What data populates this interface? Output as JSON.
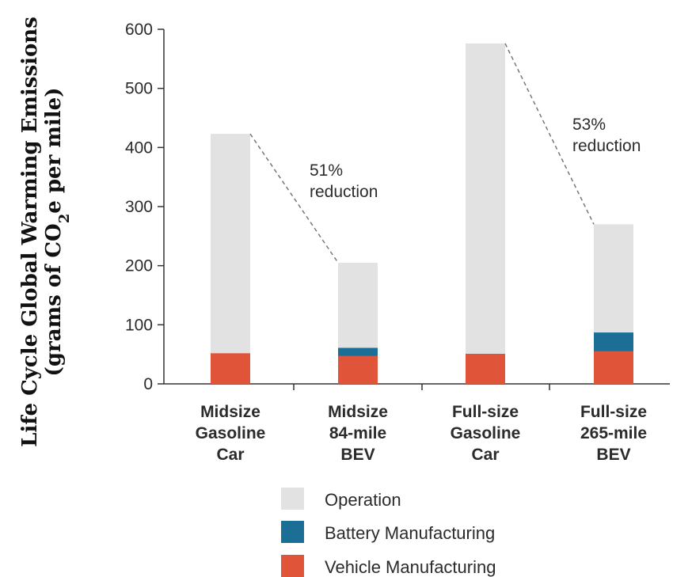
{
  "chart_data": {
    "type": "bar",
    "stacked": true,
    "categories": [
      [
        "Midsize",
        "Gasoline",
        "Car"
      ],
      [
        "Midsize",
        "84-mile",
        "BEV"
      ],
      [
        "Full-size",
        "Gasoline",
        "Car"
      ],
      [
        "Full-size",
        "265-mile",
        "BEV"
      ]
    ],
    "series": [
      {
        "name": "Vehicle Manufacturing",
        "color": "#e0553a",
        "values": [
          52,
          47,
          51,
          55
        ]
      },
      {
        "name": "Battery Manufacturing",
        "color": "#1b6f97",
        "values": [
          0,
          14,
          0,
          32
        ]
      },
      {
        "name": "Operation",
        "color": "#e2e2e2",
        "values": [
          371,
          144,
          525,
          183
        ]
      }
    ],
    "legend_order": [
      "Operation",
      "Battery Manufacturing",
      "Vehicle Manufacturing"
    ],
    "legend_position": "bottom",
    "ylabel_line1": "Life Cycle Global Warming Emissions",
    "ylabel_line2_pre": "(grams of CO",
    "ylabel_line2_sub": "2",
    "ylabel_line2_post": "e per mile)",
    "ylim": [
      0,
      600
    ],
    "yticks": [
      0,
      100,
      200,
      300,
      400,
      500,
      600
    ],
    "grid": false,
    "annotations": [
      {
        "lines": [
          "51%",
          "reduction"
        ],
        "from_bar": 0,
        "to_bar": 1
      },
      {
        "lines": [
          "53%",
          "reduction"
        ],
        "from_bar": 2,
        "to_bar": 3
      }
    ]
  }
}
